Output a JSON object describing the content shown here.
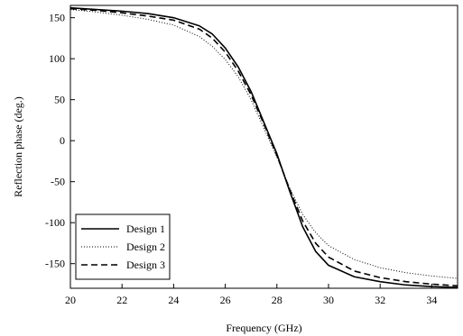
{
  "chart_data": {
    "type": "line",
    "xlabel": "Frequency (GHz)",
    "ylabel": "Reflection phase (deg.)",
    "xlim": [
      20,
      35
    ],
    "ylim": [
      -180,
      165
    ],
    "xticks": [
      20,
      22,
      24,
      26,
      28,
      30,
      32,
      34
    ],
    "yticks": [
      150,
      100,
      50,
      0,
      -50,
      -100,
      -150
    ],
    "xtick_labels": [
      "20",
      "22",
      "24",
      "26",
      "28",
      "30",
      "32",
      "34"
    ],
    "ytick_labels": [
      "150",
      "100",
      "50",
      "0",
      "-50",
      "-100",
      "-150"
    ],
    "grid": false,
    "legend_position": "bottom-left",
    "series": [
      {
        "name": "Design 1",
        "style": "solid",
        "x": [
          20,
          21,
          22,
          23,
          24,
          25,
          25.5,
          26,
          26.5,
          27,
          27.5,
          28,
          28.5,
          29,
          29.5,
          30,
          31,
          32,
          33,
          34,
          35
        ],
        "values": [
          162,
          160,
          158,
          155,
          150,
          140,
          130,
          113,
          90,
          60,
          22,
          -16,
          -62,
          -105,
          -135,
          -152,
          -166,
          -172,
          -176,
          -178,
          -179
        ]
      },
      {
        "name": "Design 2",
        "style": "dotted",
        "x": [
          20,
          21,
          22,
          23,
          24,
          25,
          25.5,
          26,
          26.5,
          27,
          27.5,
          28,
          28.5,
          29,
          29.5,
          30,
          31,
          32,
          33,
          34,
          35
        ],
        "values": [
          160,
          157,
          153,
          148,
          141,
          127,
          115,
          99,
          78,
          50,
          15,
          -20,
          -58,
          -90,
          -112,
          -128,
          -145,
          -155,
          -161,
          -165,
          -168
        ]
      },
      {
        "name": "Design 3",
        "style": "dashed",
        "x": [
          20,
          21,
          22,
          23,
          24,
          25,
          25.5,
          26,
          26.5,
          27,
          27.5,
          28,
          28.5,
          29,
          29.5,
          30,
          31,
          32,
          33,
          34,
          35
        ],
        "values": [
          161,
          159,
          156,
          152,
          147,
          136,
          125,
          108,
          85,
          56,
          20,
          -18,
          -60,
          -98,
          -125,
          -142,
          -159,
          -167,
          -172,
          -175,
          -177
        ]
      }
    ]
  }
}
